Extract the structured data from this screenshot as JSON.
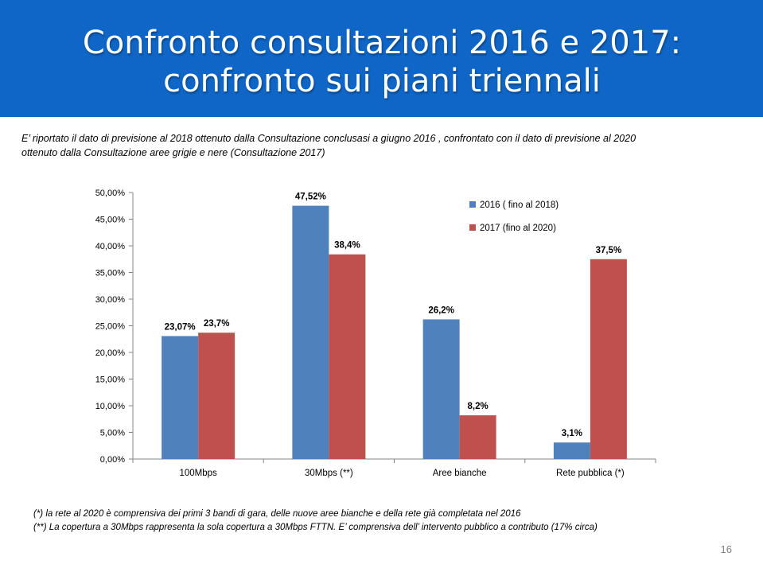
{
  "slide": {
    "title_line1": "Confronto consultazioni 2016 e 2017:",
    "title_line2": "confronto sui piani triennali",
    "intro_line1": "E’ riportato il dato di previsione al 2018 ottenuto dalla Consultazione conclusasi a giugno 2016 , confrontato con il dato di previsione al 2020",
    "intro_line2": "ottenuto  dalla Consultazione aree grigie e nere (Consultazione 2017)",
    "note1": "(*) la rete al 2020 è comprensiva dei primi 3 bandi di gara, delle nuove aree bianche e della rete già completata nel 2016",
    "note2": "(**) La copertura a 30Mbps rappresenta la sola copertura a 30Mbps FTTN. E’ comprensiva dell’ intervento pubblico a contributo (17% circa)",
    "page_number": "16",
    "banner_color": "#0F66C7"
  },
  "chart_data": {
    "type": "bar",
    "categories": [
      "100Mbps",
      "30Mbps (**)",
      "Aree bianche",
      "Rete pubblica (*)"
    ],
    "series": [
      {
        "name": "2016 ( fino al 2018)",
        "values": [
          23.07,
          47.52,
          26.2,
          3.1
        ],
        "labels": [
          "23,07%",
          "47,52%",
          "26,2%",
          "3,1%"
        ],
        "color": "#4F81BD"
      },
      {
        "name": "2017 (fino al 2020)",
        "values": [
          23.7,
          38.4,
          8.2,
          37.5
        ],
        "labels": [
          "23,7%",
          "38,4%",
          "8,2%",
          "37,5%"
        ],
        "color": "#C0504D"
      }
    ],
    "ylim": [
      0,
      50
    ],
    "yticks": [
      "0,00%",
      "5,00%",
      "10,00%",
      "15,00%",
      "20,00%",
      "25,00%",
      "30,00%",
      "35,00%",
      "40,00%",
      "45,00%",
      "50,00%"
    ],
    "grid": false,
    "legend": "top-right"
  }
}
